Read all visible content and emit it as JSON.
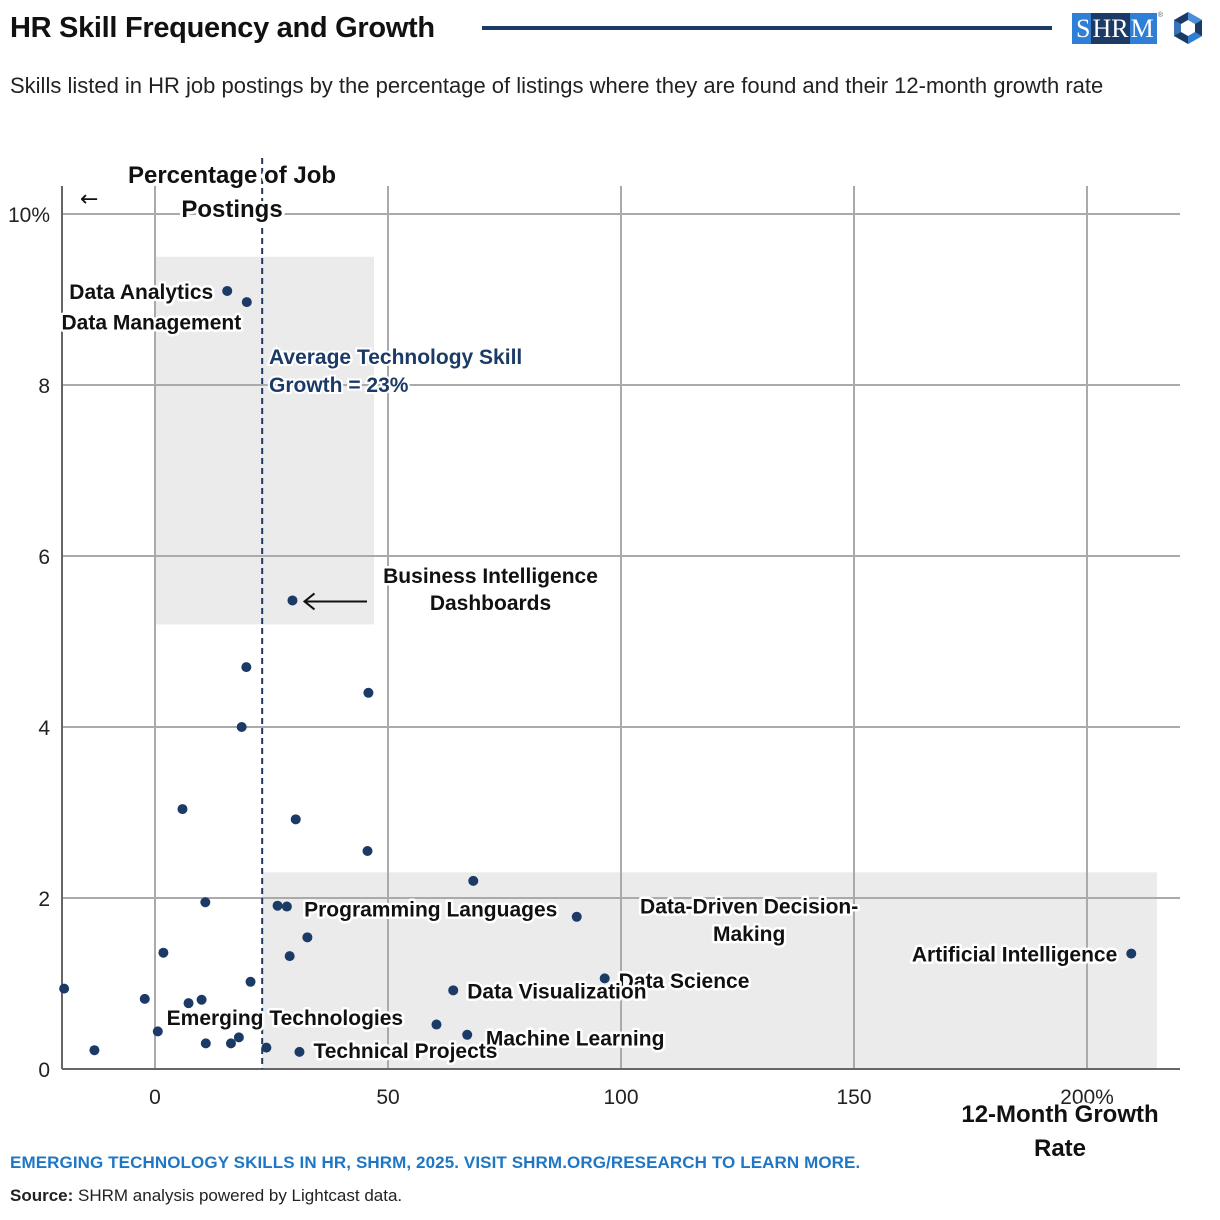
{
  "header": {
    "title": "HR Skill Frequency and Growth",
    "subtitle": "Skills listed in HR job postings by the percentage of listings where they are found and their 12-month growth rate",
    "logo_text": [
      "S",
      "HR",
      "M"
    ],
    "logo_reg": "®"
  },
  "footer": {
    "report_link": "EMERGING TECHNOLOGY SKILLS IN HR, SHRM, 2025. VISIT SHRM.ORG/RESEARCH TO LEARN MORE.",
    "source_label": "Source:",
    "source_text": "SHRM analysis powered by Lightcast data."
  },
  "colors": {
    "point": "#1b3a66",
    "accent_text": "#1b3a66",
    "link": "#1f77c4",
    "highlight_box": "#ebebeb",
    "grid": "#aaaaaa"
  },
  "chart_data": {
    "type": "scatter",
    "title": "HR Skill Frequency and Growth",
    "xlabel": "12-Month Growth Rate",
    "ylabel": "Percentage of Job Postings",
    "xlim": [
      -20,
      220
    ],
    "ylim": [
      0,
      10.3
    ],
    "x_ticks": [
      0,
      50,
      100,
      150,
      200
    ],
    "x_tick_labels": [
      "0",
      "50",
      "100",
      "150",
      "200%"
    ],
    "y_ticks": [
      0,
      2,
      4,
      6,
      8,
      10
    ],
    "y_tick_labels": [
      "0",
      "2",
      "4",
      "6",
      "8",
      "10%"
    ],
    "grid": true,
    "reference_line": {
      "x": 23,
      "label": "Average Technology Skill Growth = 23%"
    },
    "highlight_regions": [
      {
        "x": [
          0,
          47
        ],
        "y": [
          5.2,
          9.5
        ]
      },
      {
        "x": [
          23,
          215
        ],
        "y": [
          0,
          2.3
        ]
      }
    ],
    "axis_arrow_note": "←",
    "points": [
      {
        "x": 15.5,
        "y": 9.1,
        "label": "Data Analytics"
      },
      {
        "x": 19.7,
        "y": 8.97,
        "label": "Data Management"
      },
      {
        "x": 29.5,
        "y": 5.48,
        "label": "Business Intelligence Dashboards"
      },
      {
        "x": 19.6,
        "y": 4.7,
        "label": ""
      },
      {
        "x": 45.8,
        "y": 4.4,
        "label": ""
      },
      {
        "x": 18.6,
        "y": 4.0,
        "label": ""
      },
      {
        "x": 5.9,
        "y": 3.04,
        "label": ""
      },
      {
        "x": 30.2,
        "y": 2.92,
        "label": ""
      },
      {
        "x": 45.6,
        "y": 2.55,
        "label": ""
      },
      {
        "x": 68.3,
        "y": 2.2,
        "label": ""
      },
      {
        "x": 10.8,
        "y": 1.95,
        "label": ""
      },
      {
        "x": 26.3,
        "y": 1.91,
        "label": ""
      },
      {
        "x": 28.3,
        "y": 1.9,
        "label": "Programming Languages"
      },
      {
        "x": 90.5,
        "y": 1.78,
        "label": "Data-Driven Decision-Making"
      },
      {
        "x": 32.7,
        "y": 1.54,
        "label": ""
      },
      {
        "x": 1.8,
        "y": 1.36,
        "label": ""
      },
      {
        "x": 209.5,
        "y": 1.35,
        "label": "Artificial Intelligence"
      },
      {
        "x": 28.9,
        "y": 1.32,
        "label": ""
      },
      {
        "x": 96.5,
        "y": 1.06,
        "label": "Data Science"
      },
      {
        "x": 20.5,
        "y": 1.02,
        "label": ""
      },
      {
        "x": -19.5,
        "y": 0.94,
        "label": ""
      },
      {
        "x": 64.0,
        "y": 0.92,
        "label": "Data Visualization"
      },
      {
        "x": -2.2,
        "y": 0.82,
        "label": ""
      },
      {
        "x": 10.0,
        "y": 0.81,
        "label": ""
      },
      {
        "x": 7.2,
        "y": 0.77,
        "label": "Emerging Technologies"
      },
      {
        "x": 60.4,
        "y": 0.52,
        "label": ""
      },
      {
        "x": 0.6,
        "y": 0.44,
        "label": ""
      },
      {
        "x": 67.0,
        "y": 0.4,
        "label": "Machine Learning"
      },
      {
        "x": 18.0,
        "y": 0.37,
        "label": ""
      },
      {
        "x": 10.9,
        "y": 0.3,
        "label": ""
      },
      {
        "x": 16.3,
        "y": 0.3,
        "label": ""
      },
      {
        "x": 23.9,
        "y": 0.25,
        "label": ""
      },
      {
        "x": -13.0,
        "y": 0.22,
        "label": ""
      },
      {
        "x": 31.0,
        "y": 0.2,
        "label": "Technical Projects"
      }
    ],
    "annotations": [
      {
        "text": "Data Analytics",
        "anchor_x": 12.5,
        "anchor_y": 9.1,
        "align": "end"
      },
      {
        "text": "Data Management",
        "anchor_x": 18.5,
        "anchor_y": 8.74,
        "align": "end"
      },
      {
        "text": "Business Intelligence",
        "anchor_x": 72,
        "anchor_y": 5.78,
        "align": "middle"
      },
      {
        "text": "Dashboards",
        "anchor_x": 72,
        "anchor_y": 5.46,
        "align": "middle"
      },
      {
        "text": "Programming Languages",
        "anchor_x": 32,
        "anchor_y": 1.88,
        "align": "start"
      },
      {
        "text": "Data-Driven Decision-",
        "anchor_x": 127.5,
        "anchor_y": 1.91,
        "align": "middle"
      },
      {
        "text": "Making",
        "anchor_x": 127.5,
        "anchor_y": 1.59,
        "align": "middle"
      },
      {
        "text": "Artificial Intelligence",
        "anchor_x": 206.5,
        "anchor_y": 1.35,
        "align": "end"
      },
      {
        "text": "Data Science",
        "anchor_x": 99.5,
        "anchor_y": 1.04,
        "align": "start"
      },
      {
        "text": "Data Visualization",
        "anchor_x": 67.0,
        "anchor_y": 0.92,
        "align": "start"
      },
      {
        "text": "Emerging Technologies",
        "anchor_x": 2.5,
        "anchor_y": 0.61,
        "align": "start"
      },
      {
        "text": "Machine Learning",
        "anchor_x": 71.0,
        "anchor_y": 0.37,
        "align": "start"
      },
      {
        "text": "Technical Projects",
        "anchor_x": 34.0,
        "anchor_y": 0.22,
        "align": "start"
      }
    ]
  }
}
